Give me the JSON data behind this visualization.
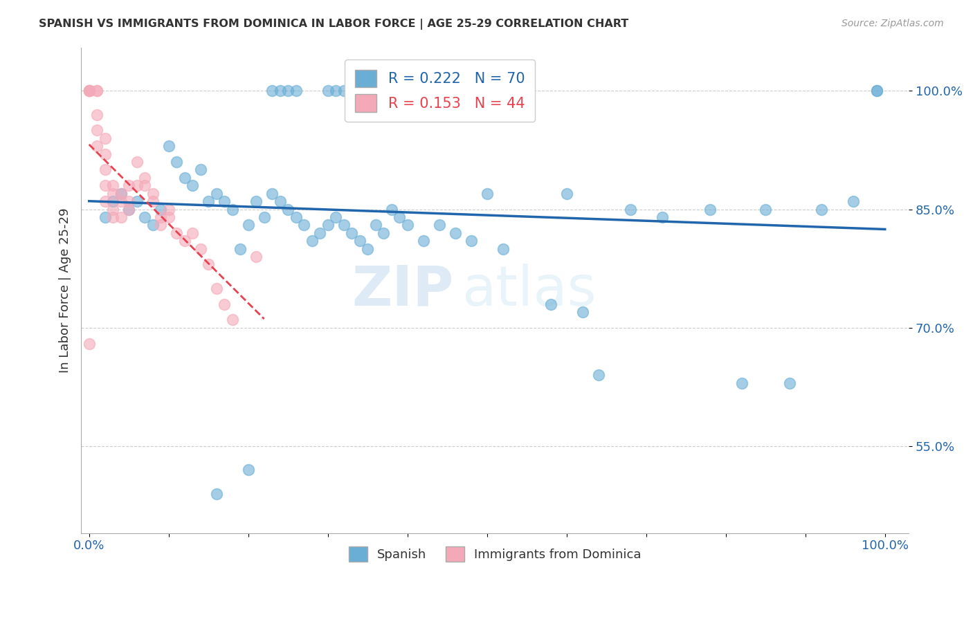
{
  "title": "SPANISH VS IMMIGRANTS FROM DOMINICA IN LABOR FORCE | AGE 25-29 CORRELATION CHART",
  "source": "Source: ZipAtlas.com",
  "ylabel": "In Labor Force | Age 25-29",
  "legend_blue_r": "0.222",
  "legend_blue_n": "70",
  "legend_pink_r": "0.153",
  "legend_pink_n": "44",
  "blue_color": "#6aaed6",
  "pink_color": "#f4a9b8",
  "trendline_blue_color": "#2166ac",
  "trendline_pink_color": "#e8424e",
  "watermark_zip": "ZIP",
  "watermark_atlas": "atlas",
  "blue_scatter_x": [
    0.02,
    0.03,
    0.04,
    0.05,
    0.06,
    0.07,
    0.08,
    0.09,
    0.1,
    0.11,
    0.12,
    0.13,
    0.14,
    0.15,
    0.16,
    0.17,
    0.18,
    0.19,
    0.2,
    0.21,
    0.22,
    0.23,
    0.24,
    0.25,
    0.26,
    0.27,
    0.28,
    0.29,
    0.3,
    0.31,
    0.32,
    0.33,
    0.34,
    0.35,
    0.36,
    0.37,
    0.38,
    0.39,
    0.4,
    0.42,
    0.44,
    0.46,
    0.48,
    0.5,
    0.52,
    0.58,
    0.64,
    0.68,
    0.72,
    0.78,
    0.82,
    0.88,
    0.92,
    0.96,
    0.99,
    0.23,
    0.24,
    0.25,
    0.26,
    0.3,
    0.31,
    0.32,
    0.33,
    0.5,
    0.62,
    0.85,
    0.99,
    0.6,
    0.16,
    0.2
  ],
  "blue_scatter_y": [
    0.84,
    0.86,
    0.87,
    0.85,
    0.86,
    0.84,
    0.83,
    0.85,
    0.93,
    0.91,
    0.89,
    0.88,
    0.9,
    0.86,
    0.87,
    0.86,
    0.85,
    0.8,
    0.83,
    0.86,
    0.84,
    0.87,
    0.86,
    0.85,
    0.84,
    0.83,
    0.81,
    0.82,
    0.83,
    0.84,
    0.83,
    0.82,
    0.81,
    0.8,
    0.83,
    0.82,
    0.85,
    0.84,
    0.83,
    0.81,
    0.83,
    0.82,
    0.81,
    0.87,
    0.8,
    0.73,
    0.64,
    0.85,
    0.84,
    0.85,
    0.63,
    0.63,
    0.85,
    0.86,
    1.0,
    1.0,
    1.0,
    1.0,
    1.0,
    1.0,
    1.0,
    1.0,
    1.0,
    1.0,
    0.72,
    0.85,
    1.0,
    0.87,
    0.49,
    0.52
  ],
  "pink_scatter_x": [
    0.0,
    0.0,
    0.0,
    0.0,
    0.01,
    0.01,
    0.01,
    0.01,
    0.01,
    0.02,
    0.02,
    0.02,
    0.02,
    0.02,
    0.03,
    0.03,
    0.03,
    0.03,
    0.04,
    0.04,
    0.04,
    0.05,
    0.05,
    0.05,
    0.06,
    0.06,
    0.07,
    0.07,
    0.08,
    0.08,
    0.09,
    0.09,
    0.1,
    0.1,
    0.11,
    0.12,
    0.13,
    0.14,
    0.15,
    0.16,
    0.17,
    0.18,
    0.21,
    0.0
  ],
  "pink_scatter_y": [
    1.0,
    1.0,
    1.0,
    1.0,
    1.0,
    1.0,
    0.97,
    0.95,
    0.93,
    0.94,
    0.92,
    0.9,
    0.88,
    0.86,
    0.88,
    0.87,
    0.85,
    0.84,
    0.87,
    0.86,
    0.84,
    0.88,
    0.86,
    0.85,
    0.91,
    0.88,
    0.89,
    0.88,
    0.87,
    0.86,
    0.84,
    0.83,
    0.85,
    0.84,
    0.82,
    0.81,
    0.82,
    0.8,
    0.78,
    0.75,
    0.73,
    0.71,
    0.79,
    0.68
  ]
}
